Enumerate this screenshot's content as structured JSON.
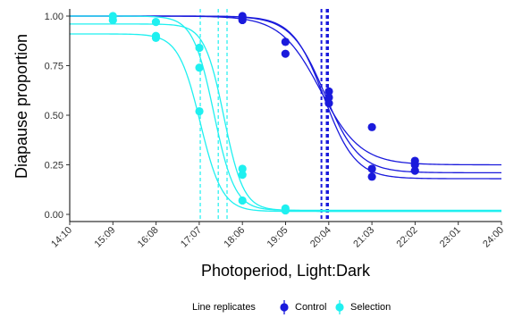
{
  "chart_data": {
    "type": "scatter",
    "xlabel": "Photoperiod, Light:Dark",
    "ylabel": "Diapause proportion",
    "x_ticks": [
      "14:10",
      "15:09",
      "16:08",
      "17:07",
      "18:06",
      "19:05",
      "20:04",
      "21:03",
      "22:02",
      "23:01",
      "24:00"
    ],
    "y_ticks": [
      "0.00",
      "0.25",
      "0.50",
      "0.75",
      "1.00"
    ],
    "xlim": [
      14.1667,
      24.0
    ],
    "ylim": [
      0,
      1
    ],
    "grid": false,
    "legend": {
      "title": "Line replicates",
      "position": "bottom",
      "entries": [
        {
          "label": "Control",
          "color": "#1a1adc"
        },
        {
          "label": "Selection",
          "color": "#1ff0f0"
        }
      ]
    },
    "series": [
      {
        "name": "Control",
        "color": "#1a1adc",
        "points": [
          {
            "x": 18.1,
            "y": 0.99
          },
          {
            "x": 18.1,
            "y": 0.98
          },
          {
            "x": 18.1,
            "y": 1.0
          },
          {
            "x": 19.08,
            "y": 0.87
          },
          {
            "x": 19.08,
            "y": 0.81
          },
          {
            "x": 20.07,
            "y": 0.62
          },
          {
            "x": 20.07,
            "y": 0.59
          },
          {
            "x": 20.07,
            "y": 0.56
          },
          {
            "x": 21.05,
            "y": 0.44
          },
          {
            "x": 21.05,
            "y": 0.23
          },
          {
            "x": 21.05,
            "y": 0.19
          },
          {
            "x": 22.03,
            "y": 0.27
          },
          {
            "x": 22.03,
            "y": 0.25
          },
          {
            "x": 22.03,
            "y": 0.22
          }
        ],
        "curves": [
          {
            "top": 1.0,
            "bottom": 0.25,
            "mid": 19.88,
            "slope": 2.2
          },
          {
            "top": 1.0,
            "bottom": 0.21,
            "mid": 19.98,
            "slope": 2.6
          },
          {
            "top": 1.0,
            "bottom": 0.18,
            "mid": 19.96,
            "slope": 2.8
          }
        ],
        "midpoints": [
          19.9,
          20.02,
          20.05
        ]
      },
      {
        "name": "Selection",
        "color": "#1ff0f0",
        "points": [
          {
            "x": 15.15,
            "y": 1.0
          },
          {
            "x": 15.15,
            "y": 0.98
          },
          {
            "x": 16.13,
            "y": 0.97
          },
          {
            "x": 16.13,
            "y": 0.9
          },
          {
            "x": 16.13,
            "y": 0.89
          },
          {
            "x": 17.12,
            "y": 0.84
          },
          {
            "x": 17.12,
            "y": 0.74
          },
          {
            "x": 17.12,
            "y": 0.52
          },
          {
            "x": 18.1,
            "y": 0.23
          },
          {
            "x": 18.1,
            "y": 0.2
          },
          {
            "x": 18.1,
            "y": 0.07
          },
          {
            "x": 19.08,
            "y": 0.03
          },
          {
            "x": 19.08,
            "y": 0.02
          }
        ],
        "curves": [
          {
            "top": 1.0,
            "bottom": 0.02,
            "mid": 17.45,
            "slope": 4.2
          },
          {
            "top": 0.96,
            "bottom": 0.02,
            "mid": 17.68,
            "slope": 4.5
          },
          {
            "top": 0.91,
            "bottom": 0.015,
            "mid": 17.14,
            "slope": 4.0
          }
        ],
        "midpoints": [
          17.14,
          17.55,
          17.75
        ]
      }
    ]
  }
}
